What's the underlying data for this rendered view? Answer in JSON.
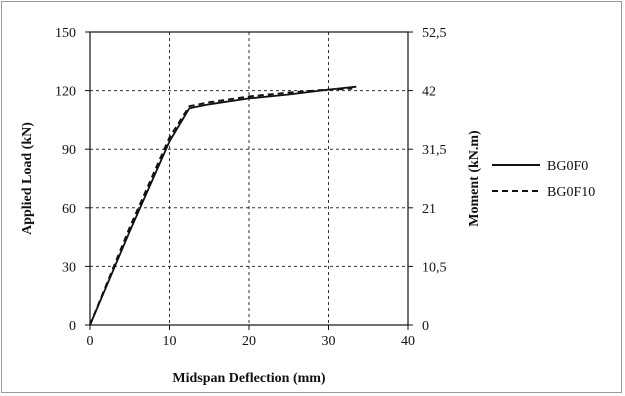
{
  "chart_data": {
    "type": "line",
    "xlabel": "Midspan Deflection (mm)",
    "ylabel": "Applied Load (kN)",
    "y2label": "Moment (kN.m)",
    "xlim": [
      0,
      40
    ],
    "ylim": [
      0,
      150
    ],
    "y2lim": [
      0,
      52.5
    ],
    "x_ticks": [
      "0",
      "10",
      "20",
      "30",
      "40"
    ],
    "y_ticks": [
      "0",
      "30",
      "60",
      "90",
      "120",
      "150"
    ],
    "y2_ticks": [
      "0",
      "10,5",
      "21",
      "31,5",
      "42",
      "52,5"
    ],
    "x_tick_values": [
      0,
      10,
      20,
      30,
      40
    ],
    "y_tick_values": [
      0,
      30,
      60,
      90,
      120,
      150
    ],
    "grid": true,
    "legend_position": "right",
    "series": [
      {
        "name": "BG0F0",
        "style": "solid",
        "color": "#111111",
        "x": [
          0,
          5,
          10,
          12.5,
          15,
          20,
          25,
          30,
          33.5
        ],
        "y": [
          0,
          48,
          94,
          111,
          113,
          116,
          118,
          120.5,
          122
        ]
      },
      {
        "name": "BG0F10",
        "style": "dashed",
        "color": "#111111",
        "x": [
          0,
          5,
          10,
          12.5,
          15,
          20,
          25,
          30,
          33
        ],
        "y": [
          0,
          50,
          96,
          112,
          114,
          117,
          119,
          120.5,
          121
        ]
      }
    ]
  }
}
